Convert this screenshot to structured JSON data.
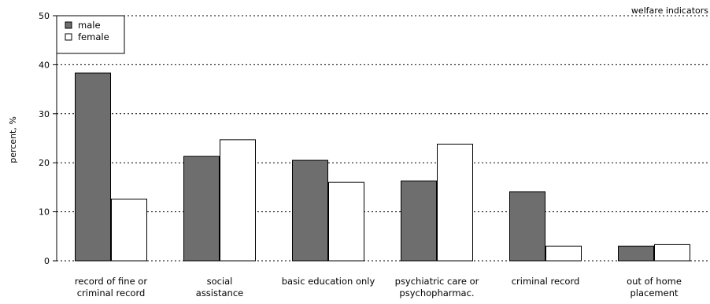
{
  "chart_data": {
    "type": "bar",
    "title": "welfare indicators",
    "ylabel": "percent, %",
    "xlabel": "",
    "ylim": [
      0,
      50
    ],
    "yticks": [
      0,
      10,
      20,
      30,
      40,
      50
    ],
    "grid": true,
    "legend_position": "top-left",
    "categories": [
      [
        "record of fine or",
        "criminal record"
      ],
      [
        "social",
        "assistance"
      ],
      [
        "basic education only"
      ],
      [
        "psychiatric care or",
        "psychopharmac."
      ],
      [
        "criminal record"
      ],
      [
        "out of home",
        "placement"
      ]
    ],
    "series": [
      {
        "name": "male",
        "color": "#6e6e6e",
        "values": [
          38.3,
          21.3,
          20.5,
          16.3,
          14.1,
          3.0
        ]
      },
      {
        "name": "female",
        "color": "#ffffff",
        "values": [
          12.6,
          24.7,
          16.0,
          23.8,
          3.0,
          3.3
        ]
      }
    ]
  }
}
